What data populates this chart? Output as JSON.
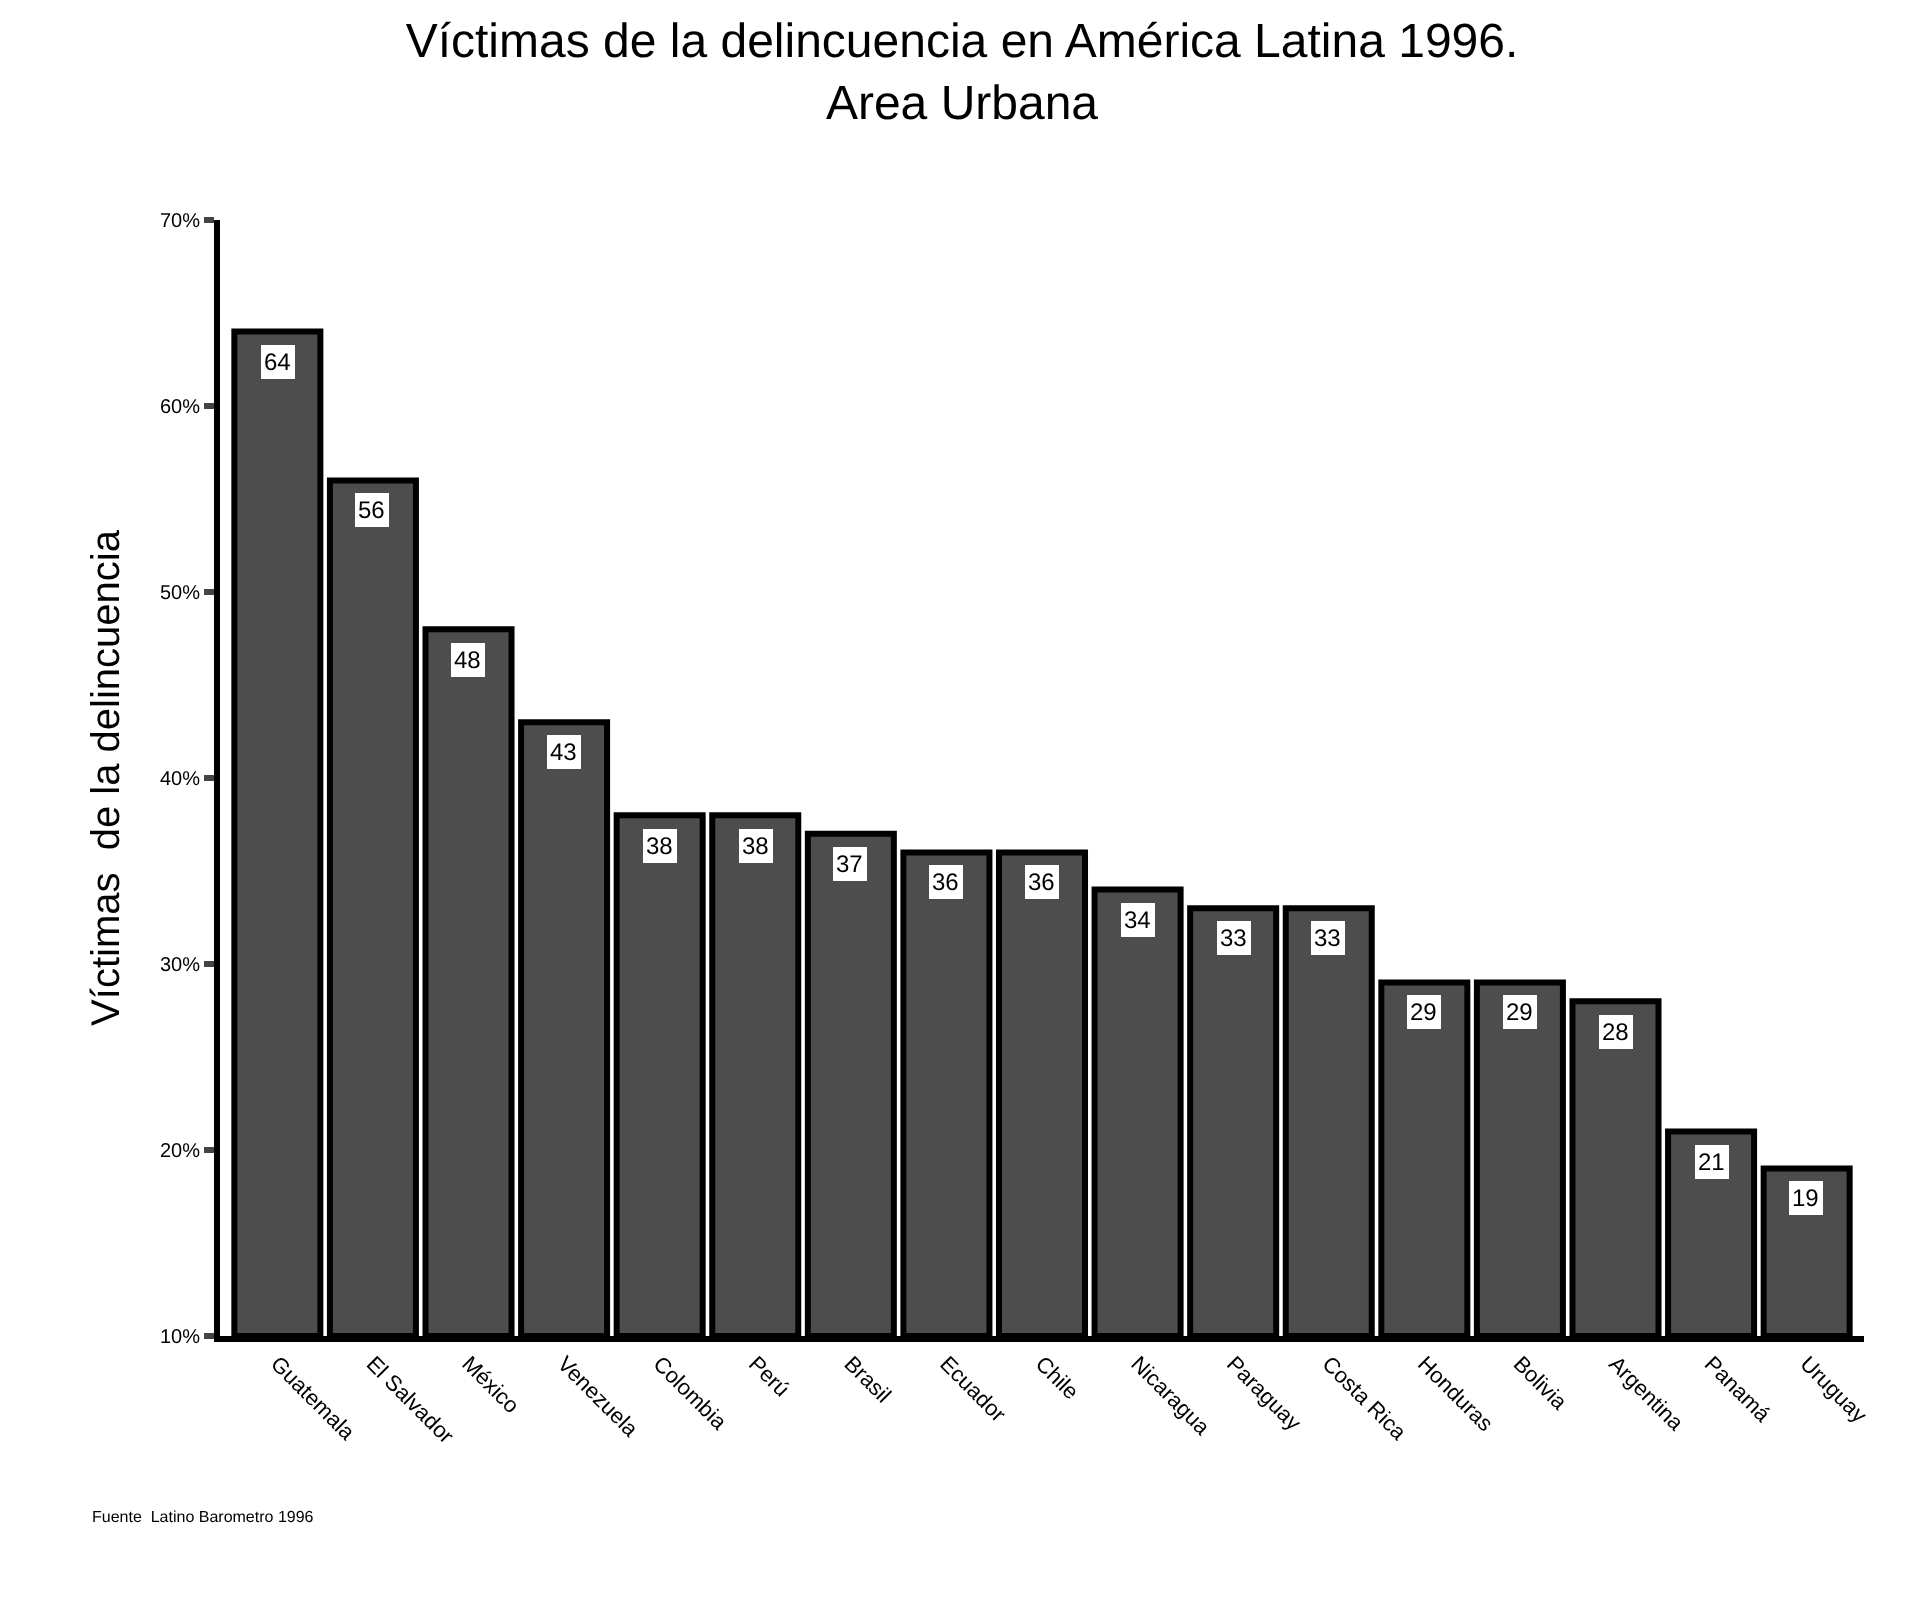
{
  "chart_data": {
    "type": "bar",
    "title": "Víctimas de la delincuencia en América Latina 1996.\nArea Urbana",
    "ylabel": "Víctimas  de la delincuencia",
    "categories": [
      "Guatemala",
      "El Salvador",
      "México",
      "Venezuela",
      "Colombia",
      "Perú",
      "Brasil",
      "Ecuador",
      "Chile",
      "Nicaragua",
      "Paraguay",
      "Costa Rica",
      "Honduras",
      "Bolivia",
      "Argentina",
      "Panamá",
      "Uruguay"
    ],
    "values": [
      64,
      56,
      48,
      43,
      38,
      38,
      37,
      36,
      36,
      34,
      33,
      33,
      29,
      29,
      28,
      21,
      19
    ],
    "color": "#4d4d4d",
    "data_labels": true,
    "ylim": [
      10,
      70
    ],
    "yticks": [
      {
        "value": 10,
        "label": "10%"
      },
      {
        "value": 20,
        "label": "20%"
      },
      {
        "value": 30,
        "label": "30%"
      },
      {
        "value": 40,
        "label": "40%"
      },
      {
        "value": 50,
        "label": "50%"
      },
      {
        "value": 60,
        "label": "60%"
      },
      {
        "value": 70,
        "label": "70%"
      }
    ],
    "annotations": [
      "Fuente  Latino Barometro 1996"
    ]
  }
}
